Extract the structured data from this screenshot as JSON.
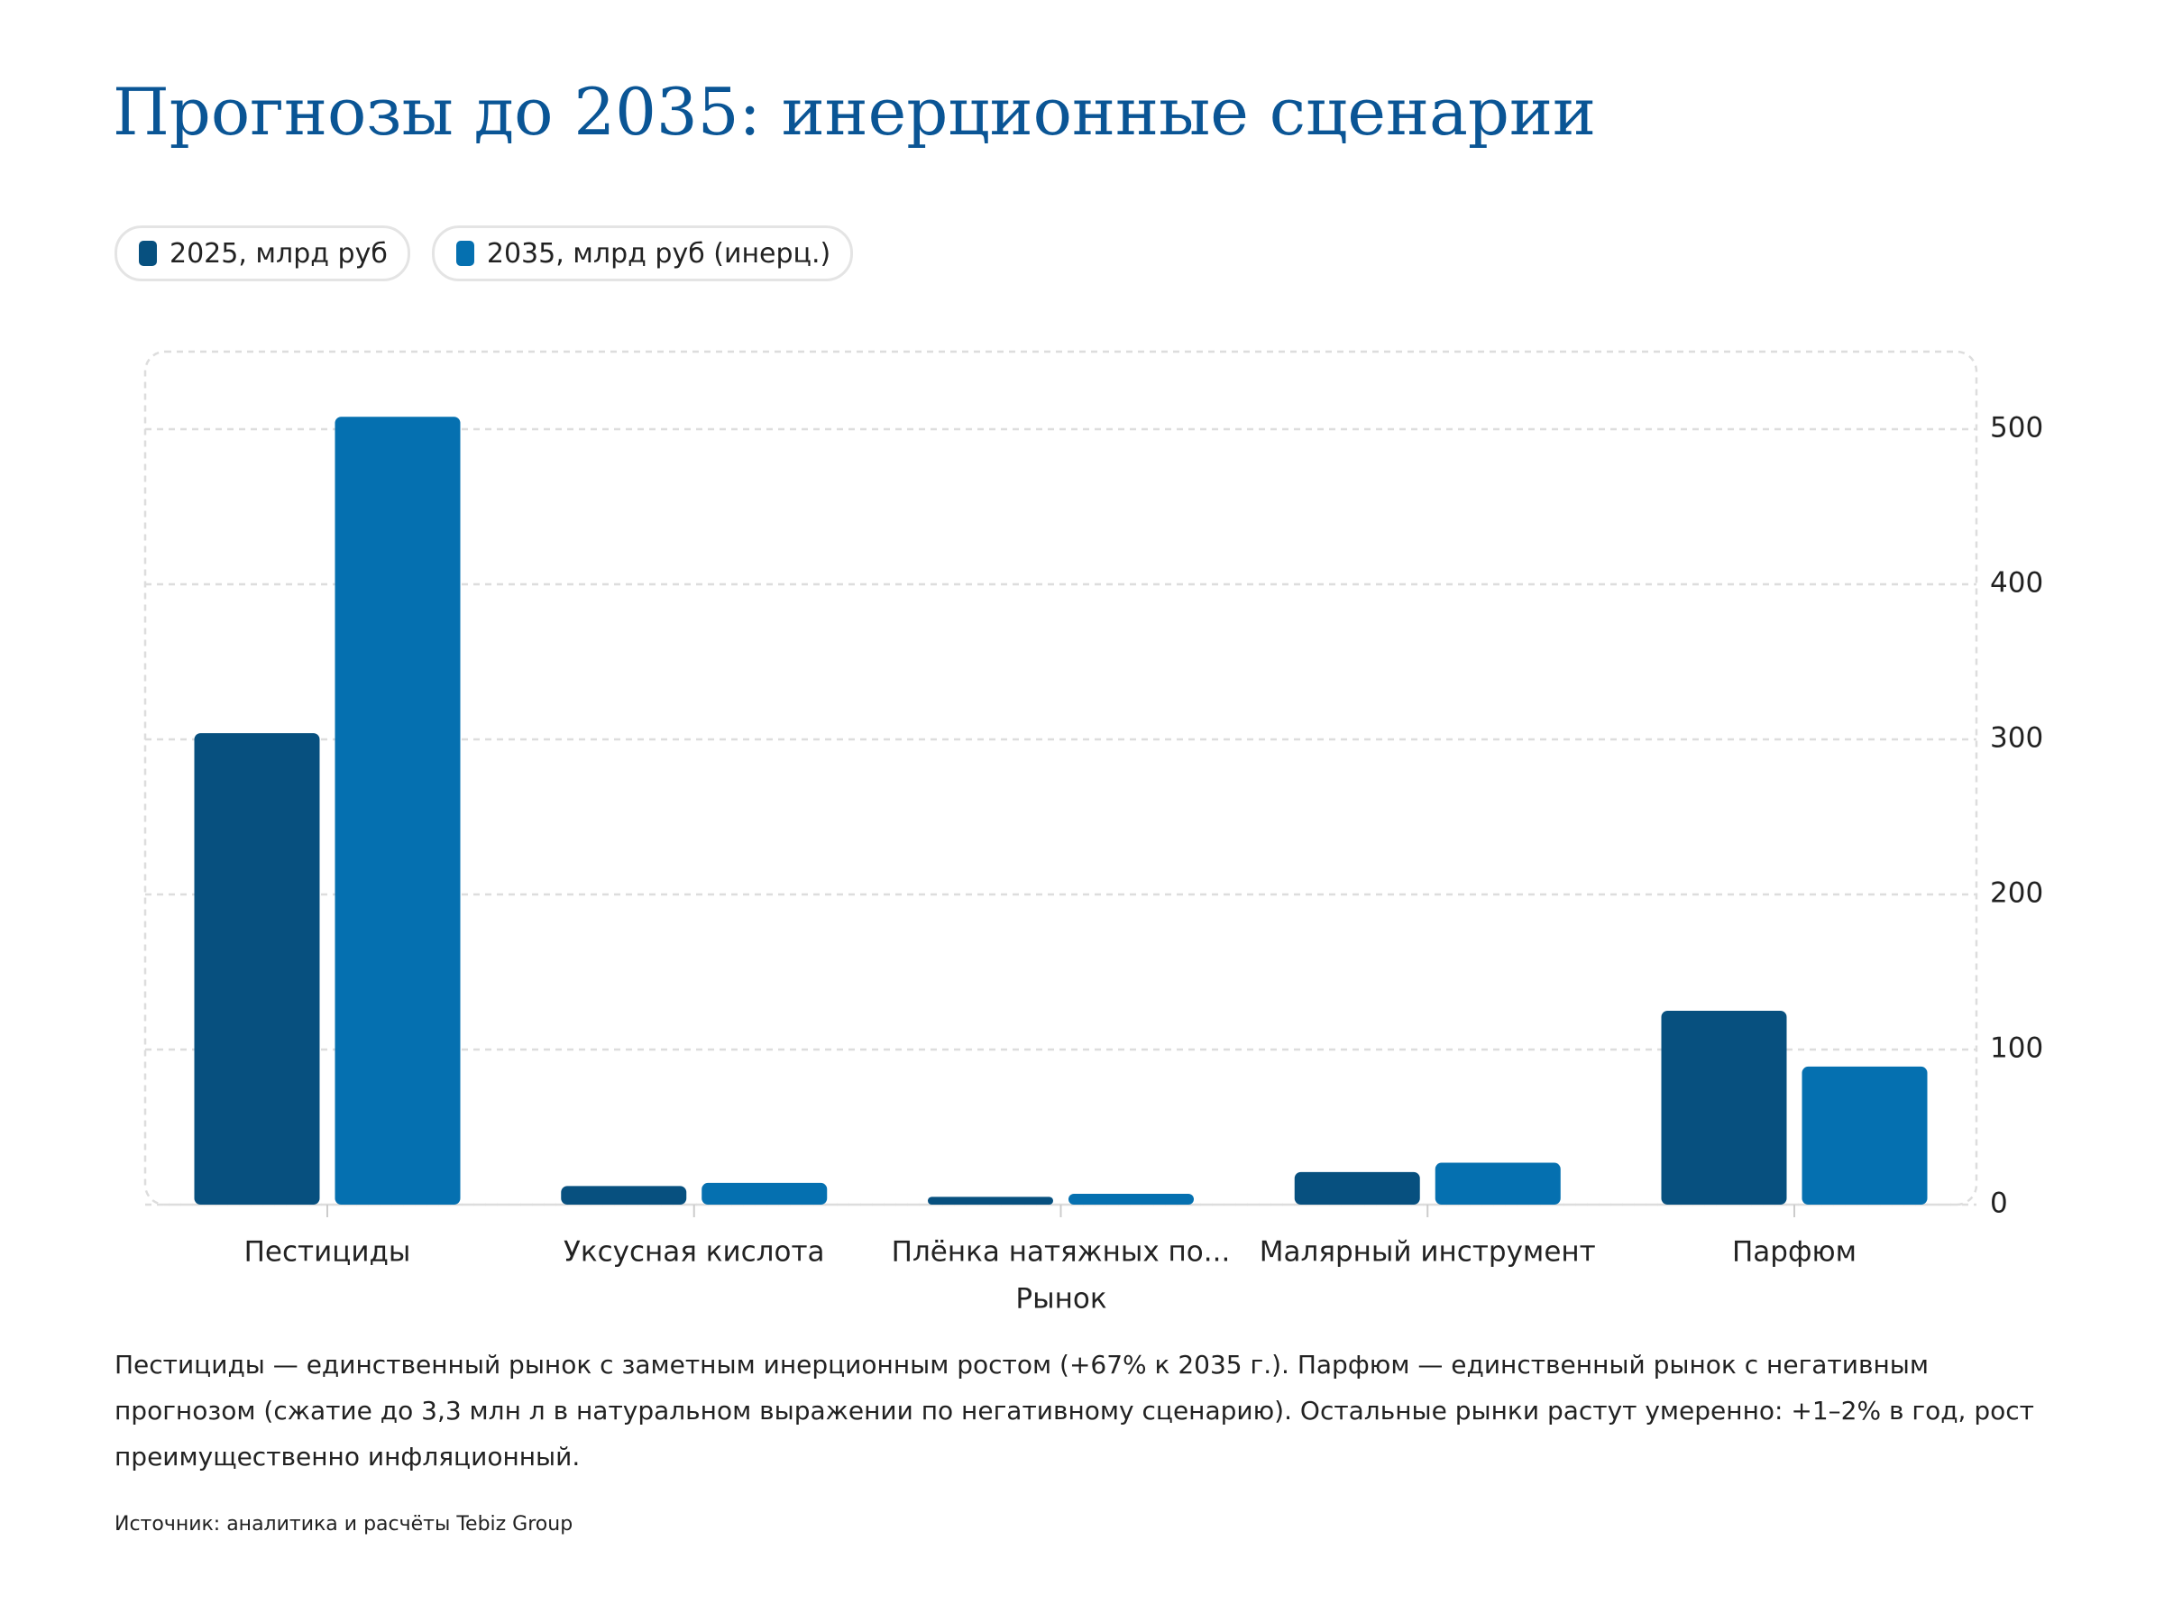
{
  "chart_data": {
    "type": "bar",
    "title": "Прогнозы до 2035: инерционные сценарии",
    "categories": [
      "Пестициды",
      "Уксусная кислота",
      "Плёнка натяжных по...",
      "Малярный инструмент",
      "Парфюм"
    ],
    "series": [
      {
        "name": "2025, млрд руб",
        "color": "#07507f",
        "values": [
          304,
          12,
          5,
          21,
          125
        ]
      },
      {
        "name": "2035, млрд руб (инерц.)",
        "color": "#0570b0",
        "values": [
          508,
          14,
          7,
          27,
          89
        ]
      }
    ],
    "x_label": "Рынок",
    "ylim": [
      0,
      550
    ],
    "yticks": [
      0,
      100,
      200,
      300,
      400,
      500
    ],
    "grid": true,
    "note": "Пестициды — единственный рынок с заметным инерционным ростом (+67% к 2035 г.). Парфюм — единственный рынок с негативным прогнозом (сжатие до 3,3 млн л в натуральном выражении по негативному сценарию). Остальные рынки растут умеренно: +1–2% в год, рост преимущественно инфляционный.",
    "source": "Источник: аналитика и расчёты Tebiz Group"
  }
}
